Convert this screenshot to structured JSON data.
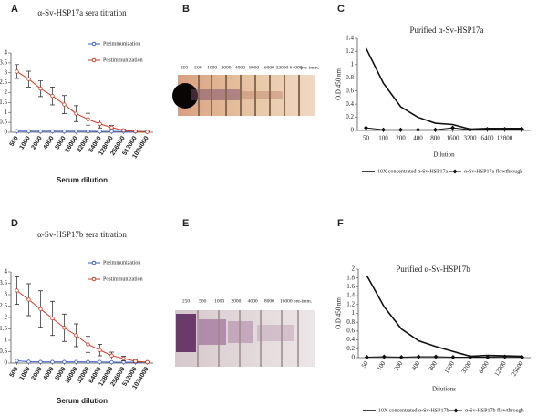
{
  "chart_data": [
    {
      "type": "line",
      "panel": "A",
      "title": "α-Sv-HSP17a sera titration",
      "x_label": "Serum dilution",
      "categories": [
        "500",
        "1000",
        "2000",
        "4000",
        "8000",
        "16000",
        "32000",
        "64000",
        "128000",
        "256000",
        "512000",
        "1024000"
      ],
      "ylim": [
        0,
        4
      ],
      "yticks": [
        0,
        0.5,
        1,
        1.5,
        2,
        2.5,
        3,
        3.5,
        4
      ],
      "legend": "upper right",
      "series": [
        {
          "name": "Preimmunization",
          "color": "#3a5ec0",
          "marker": "circle",
          "values": [
            0.06,
            0.05,
            0.05,
            0.05,
            0.05,
            0.05,
            0.05,
            0.04,
            0.04,
            0.04,
            0.04,
            0.04
          ]
        },
        {
          "name": "Postimmunization",
          "color": "#c8402c",
          "marker": "circle",
          "values": [
            3.06,
            2.68,
            2.2,
            1.83,
            1.4,
            0.94,
            0.66,
            0.42,
            0.24,
            0.1,
            0.05,
            0.02
          ],
          "errors": [
            0.35,
            0.4,
            0.4,
            0.45,
            0.45,
            0.4,
            0.3,
            0.2,
            0.1,
            0.05,
            0.03,
            0.02
          ]
        }
      ]
    },
    {
      "type": "line",
      "panel": "C",
      "title": "Purified α-Sv-HSP17a",
      "x_label": "Dilution",
      "y_label": "O.D 450 nm",
      "categories": [
        "50",
        "100",
        "200",
        "400",
        "800",
        "1600",
        "3200",
        "6400",
        "12800",
        null
      ],
      "ylim": [
        0,
        1.4
      ],
      "yticks": [
        0,
        0.2,
        0.4,
        0.6,
        0.8,
        1,
        1.2,
        1.4
      ],
      "legend": "lower center",
      "series": [
        {
          "name": "10X concentrated α-Sv-HSP17a",
          "color": "#111111",
          "marker": "none",
          "values": [
            1.25,
            0.72,
            0.36,
            0.2,
            0.11,
            0.09,
            0.02,
            0.03,
            0.03,
            0.03
          ]
        },
        {
          "name": "α-Sv-HSP17a flowthrough",
          "color": "#111111",
          "marker": "diamond",
          "values": [
            0.04,
            0.01,
            0.01,
            0.01,
            0.01,
            0.04,
            0.01,
            0.02,
            0.02,
            0.02
          ]
        }
      ]
    },
    {
      "type": "line",
      "panel": "D",
      "title": "α-Sv-HSP17b sera titration",
      "x_label": "Serum dilution",
      "categories": [
        "500",
        "1000",
        "2000",
        "4000",
        "8000",
        "16000",
        "32000",
        "64000",
        "128000",
        "256000",
        "512000",
        "1024000"
      ],
      "ylim": [
        0,
        4
      ],
      "yticks": [
        0,
        0.5,
        1,
        1.5,
        2,
        2.5,
        3,
        3.5,
        4
      ],
      "legend": "upper right",
      "series": [
        {
          "name": "Preimmunization",
          "color": "#3a5ec0",
          "marker": "circle",
          "values": [
            0.1,
            0.06,
            0.05,
            0.05,
            0.05,
            0.05,
            0.05,
            0.05,
            0.04,
            0.04,
            0.04,
            0.04
          ]
        },
        {
          "name": "Postimmunization",
          "color": "#c8402c",
          "marker": "circle",
          "values": [
            3.18,
            2.78,
            2.37,
            1.96,
            1.55,
            1.22,
            0.82,
            0.57,
            0.33,
            0.2,
            0.08,
            0.04
          ],
          "errors": [
            0.6,
            0.7,
            0.8,
            0.75,
            0.6,
            0.5,
            0.35,
            0.25,
            0.15,
            0.1,
            0.05,
            0.03
          ]
        }
      ]
    },
    {
      "type": "line",
      "panel": "F",
      "title": "Purified α-Sv-HSP17b",
      "x_label": "Dilutions",
      "y_label": "O.D 450 nm",
      "categories": [
        "50",
        "100",
        "200",
        "400",
        "800",
        "1600",
        "3200",
        "6400",
        "12800",
        "25600"
      ],
      "ylim": [
        0,
        2
      ],
      "yticks": [
        0,
        0.2,
        0.4,
        0.6,
        0.8,
        1,
        1.2,
        1.4,
        1.6,
        1.8,
        2
      ],
      "legend": "lower center",
      "series": [
        {
          "name": "10X concentrated α-Sv-HSP17b",
          "color": "#111111",
          "marker": "none",
          "values": [
            1.85,
            1.15,
            0.65,
            0.38,
            0.25,
            0.14,
            0.03,
            0.05,
            0.04,
            0.03
          ]
        },
        {
          "name": "α-Sv-HSP17b flowthrough",
          "color": "#111111",
          "marker": "diamond",
          "values": [
            0.01,
            0.02,
            0.01,
            0.02,
            0.02,
            0.01,
            0.01,
            0.01,
            0.02,
            0.01
          ]
        }
      ]
    }
  ],
  "blots": [
    {
      "panel": "B",
      "lanes": [
        "250",
        "500",
        "1000",
        "2000",
        "4000",
        "8000",
        "16000",
        "32000",
        "64000",
        "pre-imm."
      ]
    },
    {
      "panel": "E",
      "lanes": [
        "250",
        "500",
        "1000",
        "2000",
        "4000",
        "8000",
        "16000",
        "pre-imm."
      ]
    }
  ]
}
